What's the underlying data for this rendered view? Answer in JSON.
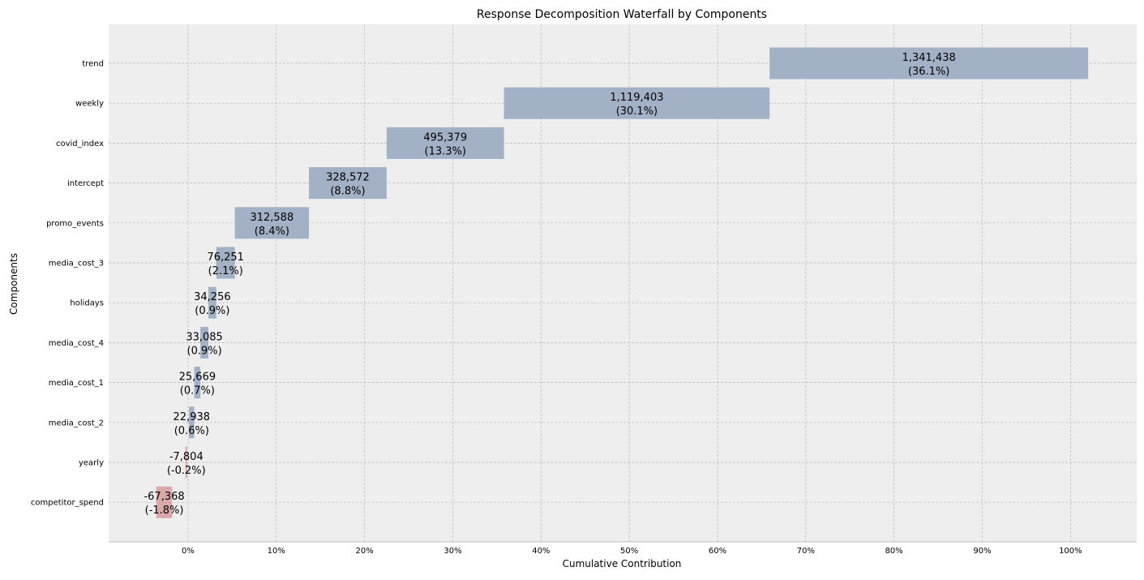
{
  "chart_data": {
    "type": "bar",
    "orientation": "horizontal-waterfall",
    "title": "Response Decomposition Waterfall by Components",
    "xlabel": "Cumulative Contribution",
    "ylabel": "Components",
    "xlim": [
      -0.09,
      1.075
    ],
    "x_ticks": [
      0,
      0.1,
      0.2,
      0.3,
      0.4,
      0.5,
      0.6,
      0.7,
      0.8,
      0.9,
      1.0
    ],
    "x_tick_labels": [
      "0%",
      "10%",
      "20%",
      "30%",
      "40%",
      "50%",
      "60%",
      "70%",
      "80%",
      "90%",
      "100%"
    ],
    "grid": true,
    "colors": {
      "positive": "#a2b1c6",
      "negative": "#dba9a9",
      "background": "#eeeeee",
      "grid": "#b8b8b8"
    },
    "categories": [
      "trend",
      "weekly",
      "covid_index",
      "intercept",
      "promo_events",
      "media_cost_3",
      "holidays",
      "media_cost_4",
      "media_cost_1",
      "media_cost_2",
      "yearly",
      "competitor_spend"
    ],
    "values": [
      1341438,
      1119403,
      495379,
      328572,
      312588,
      76251,
      34256,
      33085,
      25669,
      22938,
      -7804,
      -67368
    ],
    "value_labels": [
      "1,341,438",
      "1,119,403",
      "495,379",
      "328,572",
      "312,588",
      "76,251",
      "34,256",
      "33,085",
      "25,669",
      "22,938",
      "-7,804",
      "-67,368"
    ],
    "percent_labels": [
      "(36.1%)",
      "(30.1%)",
      "(13.3%)",
      "(8.8%)",
      "(8.4%)",
      "(2.1%)",
      "(0.9%)",
      "(0.9%)",
      "(0.7%)",
      "(0.6%)",
      "(-0.2%)",
      "(-1.8%)"
    ],
    "shares": [
      0.361,
      0.301,
      0.133,
      0.088,
      0.084,
      0.021,
      0.009,
      0.009,
      0.007,
      0.006,
      -0.002,
      -0.018
    ],
    "bar_start": [
      0.659,
      0.358,
      0.225,
      0.137,
      0.053,
      0.032,
      0.023,
      0.014,
      0.007,
      0.001,
      -0.001,
      -0.036
    ],
    "bar_end": [
      1.02,
      0.659,
      0.358,
      0.225,
      0.137,
      0.053,
      0.032,
      0.023,
      0.014,
      0.007,
      -0.003,
      -0.018
    ]
  }
}
